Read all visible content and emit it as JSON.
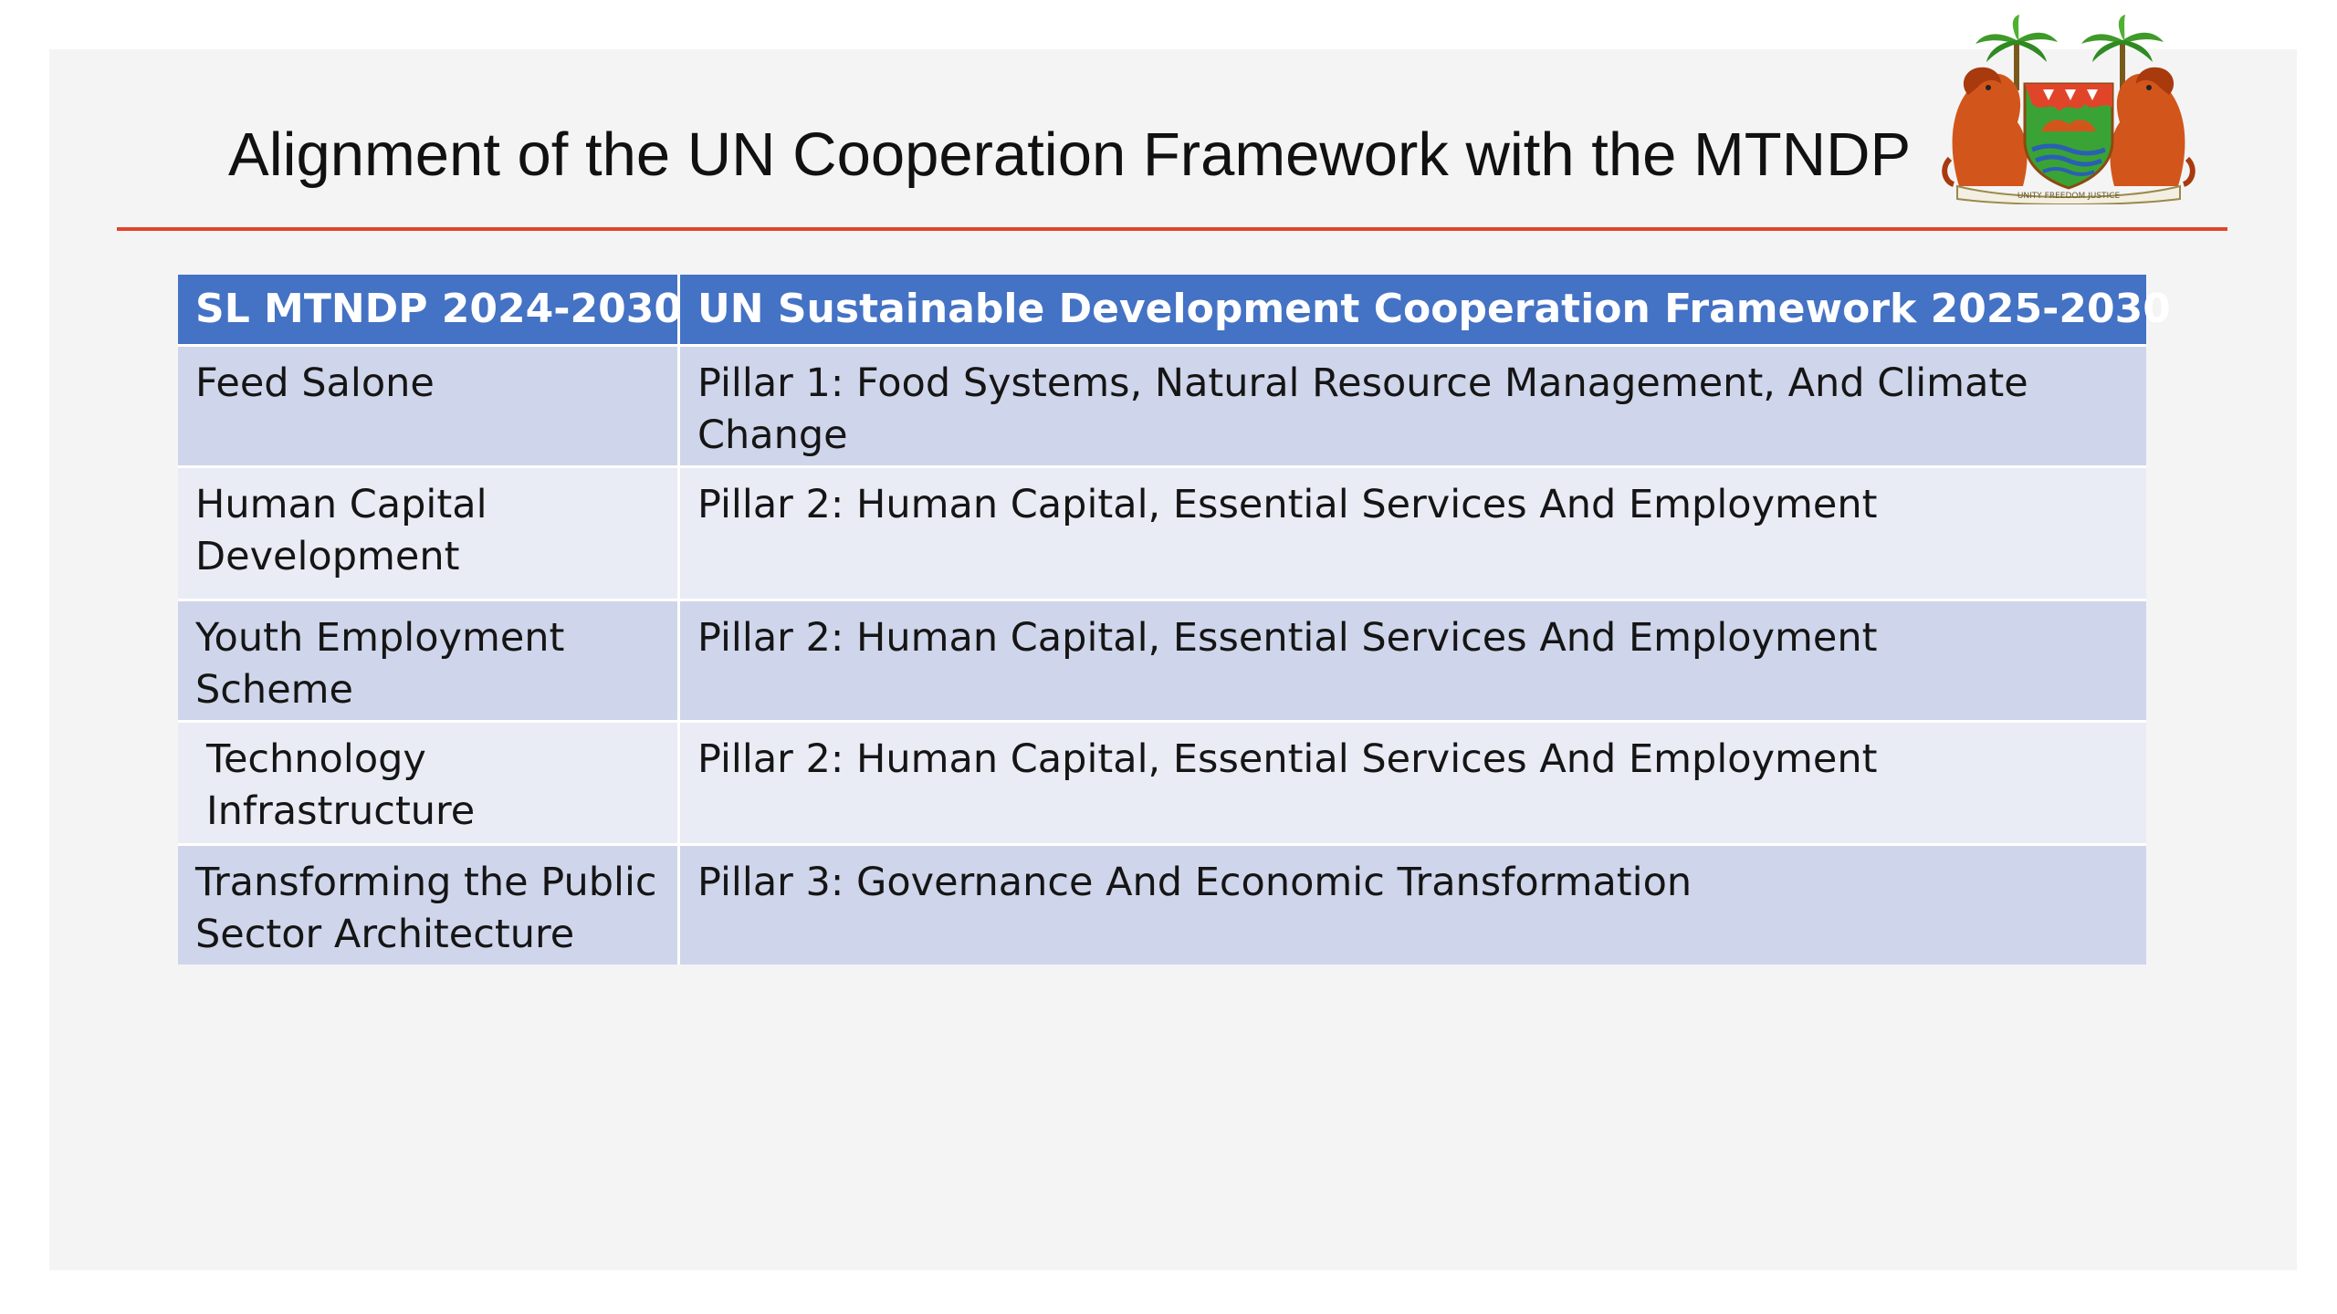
{
  "slide": {
    "title": "Alignment of the UN Cooperation Framework with the MTNDP",
    "emblem": {
      "icon": "sierra-leone-coat-of-arms",
      "motto": "UNITY FREEDOM JUSTICE"
    },
    "rule_color": "#e0452a"
  },
  "table": {
    "headers": [
      "SL MTNDP 2024-2030",
      "UN Sustainable Development Cooperation Framework 2025-2030"
    ],
    "header_color": "#4472c4",
    "row_colors": [
      "#cfd5ea",
      "#e9ebf5"
    ],
    "rows": [
      {
        "mtndp": "Feed Salone",
        "framework": "Pillar 1: Food Systems, Natural Resource Management, And Climate Change"
      },
      {
        "mtndp": "Human Capital Development",
        "framework": "Pillar 2: Human Capital, Essential Services And Employment"
      },
      {
        "mtndp": "Youth Employment Scheme",
        "framework": "Pillar 2: Human Capital, Essential Services And Employment"
      },
      {
        "mtndp": "Technology Infrastructure",
        "framework": "Pillar 2: Human Capital, Essential Services And Employment"
      },
      {
        "mtndp": "Transforming the Public Sector Architecture",
        "framework": "Pillar 3: Governance And Economic Transformation"
      }
    ]
  }
}
